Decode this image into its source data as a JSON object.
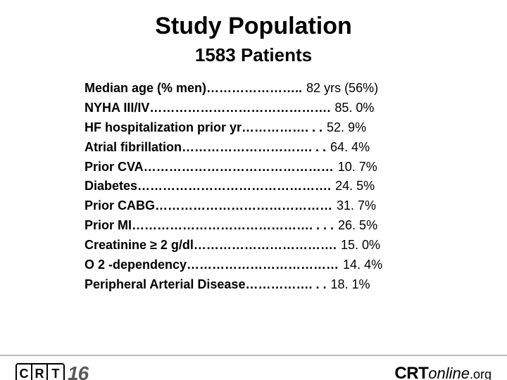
{
  "title": "Study Population",
  "subtitle": "1583 Patients",
  "rows": [
    {
      "label": "Median age (% men)",
      "dots": "…………………..",
      "value": "82 yrs (56%)"
    },
    {
      "label": "NYHA III/IV",
      "dots": "…………………………………….",
      "value": "85. 0%"
    },
    {
      "label": "HF hospitalization prior yr",
      "dots": "……………. . .",
      "value": "52. 9%"
    },
    {
      "label": "Atrial fibrillation",
      "dots": "…………………………. . .",
      "value": "64. 4%"
    },
    {
      "label": "Prior CVA",
      "dots": "………………………………………",
      "value": "10. 7%"
    },
    {
      "label": "Diabetes",
      "dots": "……………………………………….",
      "value": "24. 5%"
    },
    {
      "label": "Prior CABG",
      "dots": "……………………………………",
      "value": "31. 7%"
    },
    {
      "label": "Prior MI",
      "dots": "……………………………………. . . .",
      "value": "26. 5%"
    },
    {
      "label": "Creatinine ≥ 2 g/dl",
      "dots": "…………………………….",
      "value": "15. 0%"
    },
    {
      "label": "O 2 -dependency",
      "dots": "………………………………",
      "value": "14. 4%"
    },
    {
      "label": "Peripheral Arterial Disease",
      "dots": "……………. . .",
      "value": "18. 1%"
    }
  ],
  "footer": {
    "crt_letters": [
      "C",
      "R",
      "T"
    ],
    "year": "16",
    "online_crt": "CRT",
    "online_text": "online",
    "online_org": ".org"
  },
  "colors": {
    "background": "#ffffff",
    "text": "#000000",
    "footer_line": "#b8b8b8",
    "year_color": "#5a5a5a"
  },
  "fonts": {
    "title_size": 34,
    "subtitle_size": 26,
    "row_size": 18
  }
}
